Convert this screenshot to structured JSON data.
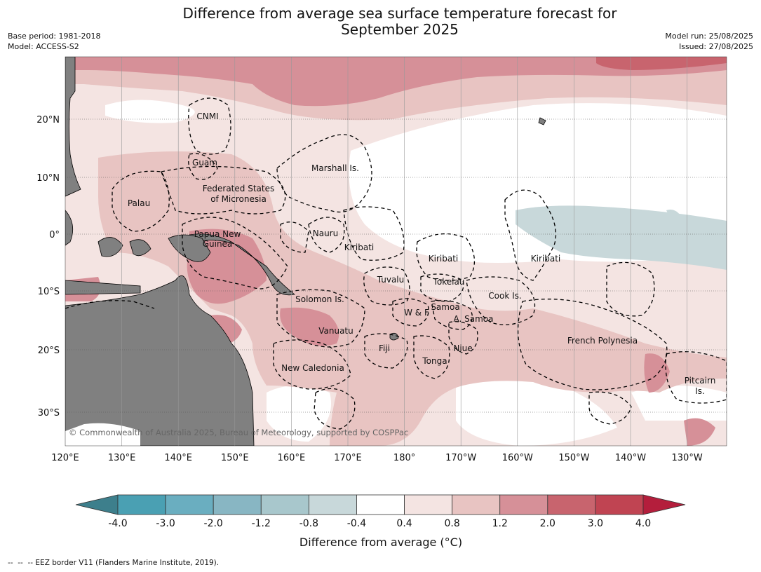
{
  "header": {
    "title_line1": "Difference from average sea surface temperature forecast for",
    "title_line2": "September 2025",
    "base_period": "Base period: 1981-2018",
    "model": "Model: ACCESS-S2",
    "model_run": "Model run: 25/08/2025",
    "issued": "Issued: 27/08/2025"
  },
  "map": {
    "lon_labels": [
      "120°E",
      "130°E",
      "140°E",
      "150°E",
      "160°E",
      "170°E",
      "180°",
      "170°W",
      "160°W",
      "150°W",
      "140°W",
      "130°W"
    ],
    "lat_labels": [
      "20°N",
      "10°N",
      "0°",
      "10°S",
      "20°S",
      "30°S"
    ],
    "regions": [
      "CNMI",
      "Guam",
      "Marshall Is.",
      "Palau",
      "Federated States",
      "of Micronesia",
      "Papua New",
      "Guinea",
      "Nauru",
      "Kiribati",
      "Kiribati",
      "Kiribati",
      "Tuvalu",
      "Tokelau",
      "Solomon Is.",
      "Cook Is.",
      "Samoa",
      "W & F",
      "A. Samoa",
      "Vanuatu",
      "Fiji",
      "Niue",
      "French Polynesia",
      "Tonga",
      "New Caledonia",
      "Pitcairn",
      "Is."
    ],
    "copyright": "© Commonwealth of Australia 2025, Bureau of Meteorology, supported by COSPPac",
    "colors": {
      "land": "#808080",
      "ocean_neutral": "#ffffff"
    }
  },
  "colorbar": {
    "ticks": [
      "-4.0",
      "-3.0",
      "-2.0",
      "-1.2",
      "-0.8",
      "-0.4",
      "0.4",
      "0.8",
      "1.2",
      "2.0",
      "3.0",
      "4.0"
    ],
    "colors": [
      "#3d7f8c",
      "#4aa0b3",
      "#6aaec0",
      "#88b6c3",
      "#a8c7cc",
      "#c8d8da",
      "#ffffff",
      "#f4e4e2",
      "#e8c4c2",
      "#d69098",
      "#c8646e",
      "#c04452",
      "#b41e3c"
    ],
    "label": "Difference from average (°C)"
  },
  "legend_note": "--  --  -- EEZ border V11 (Flanders Marine Institute, 2019)."
}
